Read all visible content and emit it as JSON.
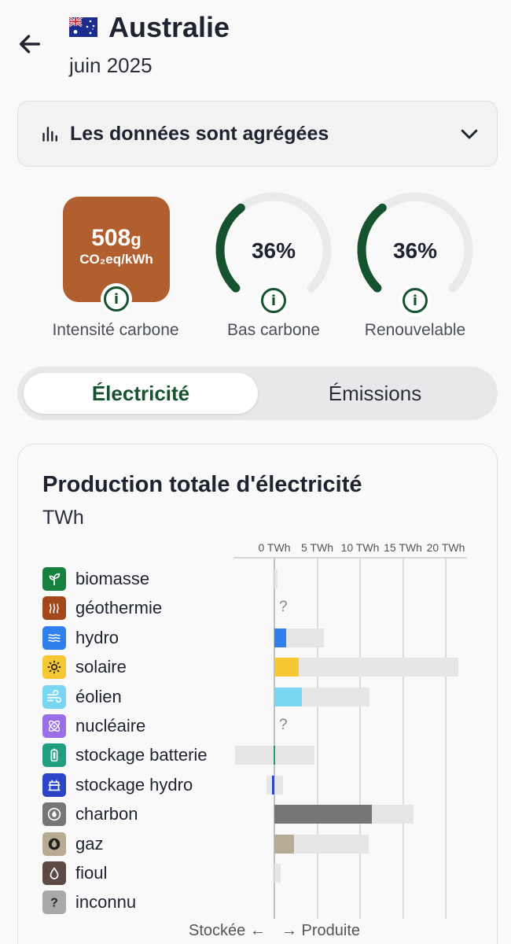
{
  "header": {
    "title": "Australie",
    "subtitle": "juin 2025"
  },
  "aggregation": {
    "label": "Les données sont agrégées"
  },
  "metrics": {
    "carbon_intensity": {
      "value": "508",
      "unit_small": "g",
      "unit": "CO₂eq/kWh",
      "caption": "Intensité carbone",
      "color": "#b15f2f"
    },
    "low_carbon": {
      "value": "36%",
      "fraction": 0.36,
      "caption": "Bas carbone"
    },
    "renewable": {
      "value": "36%",
      "fraction": 0.36,
      "caption": "Renouvelable"
    }
  },
  "tabs": {
    "electricity": "Électricité",
    "emissions": "Émissions"
  },
  "card": {
    "title": "Production totale d'électricité",
    "unit": "TWh",
    "footer_left": "Stockée ←",
    "footer_right": "→ Produite"
  },
  "chart_data": {
    "type": "bar",
    "title": "Production totale d'électricité",
    "xlabel": "TWh",
    "xlim": [
      -4.6,
      22
    ],
    "tick_labels": [
      "0 TWh",
      "5 TWh",
      "10 TWh",
      "15 TWh",
      "20 TWh"
    ],
    "ticks": [
      0,
      5,
      10,
      15,
      20
    ],
    "categories": [
      {
        "name": "biomasse",
        "icon": "leaf-icon",
        "color": "#16813f",
        "value": 0,
        "capacity": 0.4
      },
      {
        "name": "géothermie",
        "icon": "heat-icon",
        "color": "#a3481a",
        "value": null,
        "capacity": null
      },
      {
        "name": "hydro",
        "icon": "water-icon",
        "color": "#2f80ed",
        "value": 1.4,
        "capacity": 5.8
      },
      {
        "name": "solaire",
        "icon": "sun-icon",
        "color": "#f6c833",
        "value": 2.8,
        "capacity": 21.5
      },
      {
        "name": "éolien",
        "icon": "wind-icon",
        "color": "#78d6f2",
        "value": 3.2,
        "capacity": 11.1
      },
      {
        "name": "nucléaire",
        "icon": "atom-icon",
        "color": "#9a6ee4",
        "value": null,
        "capacity": null
      },
      {
        "name": "stockage batterie",
        "icon": "battery-icon",
        "color": "#1f9f80",
        "value": -0.1,
        "capacity_neg": -4.6,
        "capacity": 4.7
      },
      {
        "name": "stockage hydro",
        "icon": "hydro-storage-icon",
        "color": "#2b44c8",
        "value": -0.3,
        "capacity_neg": -0.9,
        "capacity": 1.0
      },
      {
        "name": "charbon",
        "icon": "coal-icon",
        "color": "#767676",
        "value": 11.4,
        "capacity": 16.2
      },
      {
        "name": "gaz",
        "icon": "gas-icon",
        "color": "#b7ab93",
        "value": 2.3,
        "capacity": 11.0
      },
      {
        "name": "fioul",
        "icon": "oil-icon",
        "color": "#5e4a44",
        "value": 0,
        "capacity": 0.7
      },
      {
        "name": "inconnu",
        "icon": "question-icon",
        "color": "#a9a9a9",
        "value": 0,
        "capacity": null
      }
    ],
    "missing_label": "?"
  }
}
